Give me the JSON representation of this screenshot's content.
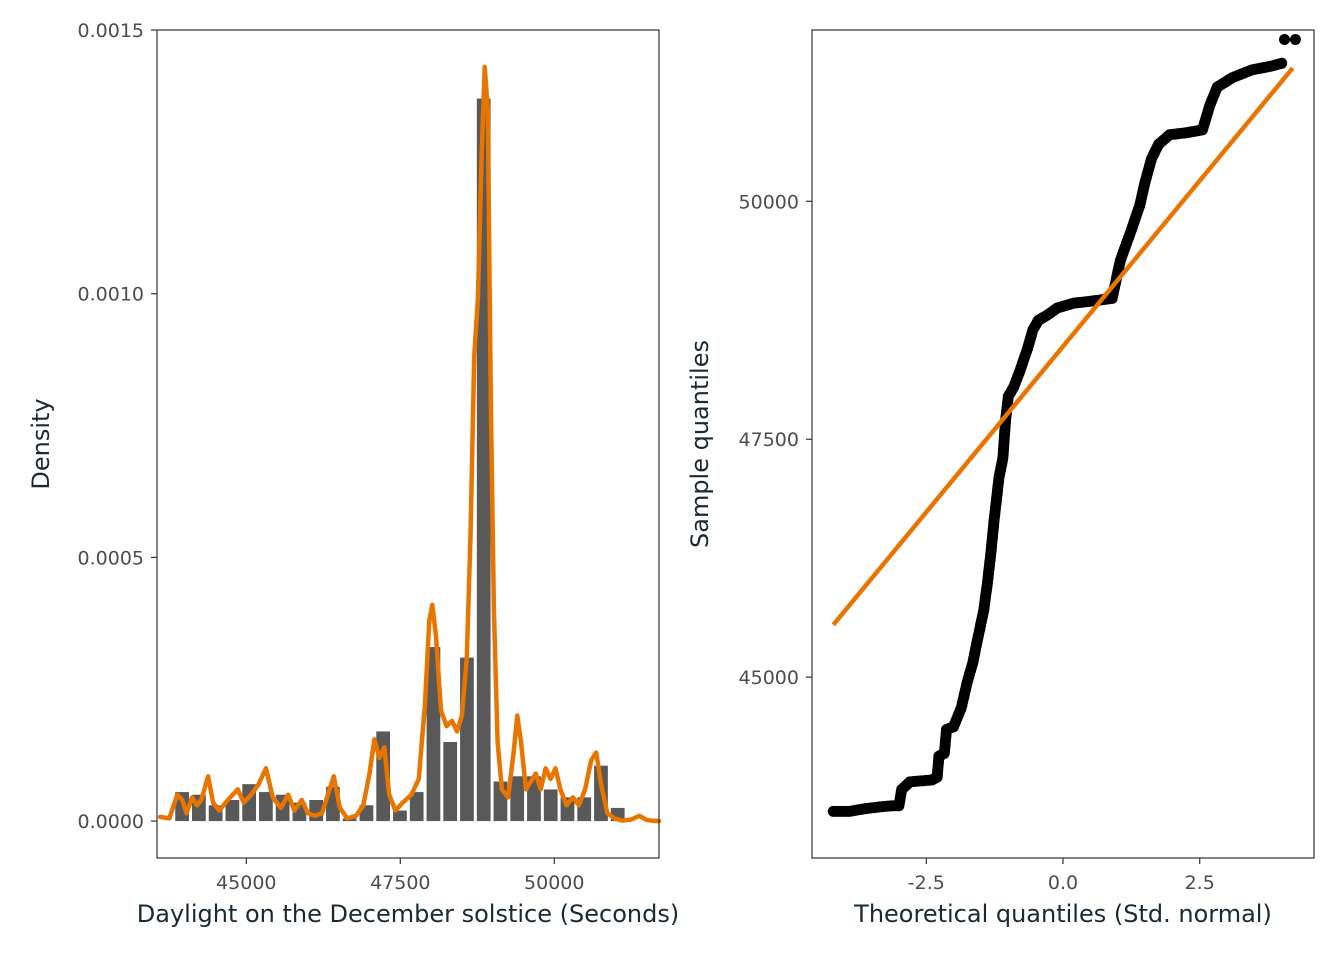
{
  "colors": {
    "bar": "#595959",
    "density": "#E87500",
    "points": "#000000",
    "line": "#E87500",
    "text": "#4d4d4d",
    "title": "#1a2a33"
  },
  "chart_data": [
    {
      "type": "bar",
      "subtype": "histogram-with-density",
      "xlabel": "Daylight on the December solstice (Seconds)",
      "ylabel": "Density",
      "xlim": [
        43550,
        51700
      ],
      "ylim": [
        -7e-05,
        0.0015
      ],
      "xticks": [
        45000,
        47500,
        50000
      ],
      "xtick_labels": [
        "45000",
        "47500",
        "50000"
      ],
      "yticks": [
        0.0,
        0.0005,
        0.001,
        0.0015
      ],
      "ytick_labels": [
        "0.0000",
        "0.0005",
        "0.0010",
        "0.0015"
      ],
      "grid": false,
      "bin_width": 272,
      "bins": [
        {
          "x": 43958,
          "y": 5.5e-05
        },
        {
          "x": 44230,
          "y": 5e-05
        },
        {
          "x": 44502,
          "y": 3e-05
        },
        {
          "x": 44774,
          "y": 4e-05
        },
        {
          "x": 45046,
          "y": 7e-05
        },
        {
          "x": 45318,
          "y": 5.5e-05
        },
        {
          "x": 45590,
          "y": 5e-05
        },
        {
          "x": 45862,
          "y": 3.5e-05
        },
        {
          "x": 46134,
          "y": 4e-05
        },
        {
          "x": 46406,
          "y": 6.5e-05
        },
        {
          "x": 46678,
          "y": 5e-06
        },
        {
          "x": 46950,
          "y": 3e-05
        },
        {
          "x": 47222,
          "y": 0.00017
        },
        {
          "x": 47494,
          "y": 2e-05
        },
        {
          "x": 47766,
          "y": 5.5e-05
        },
        {
          "x": 48038,
          "y": 0.00033
        },
        {
          "x": 48310,
          "y": 0.00015
        },
        {
          "x": 48582,
          "y": 0.00031
        },
        {
          "x": 48854,
          "y": 0.00137
        },
        {
          "x": 49126,
          "y": 7.5e-05
        },
        {
          "x": 49398,
          "y": 8.5e-05
        },
        {
          "x": 49670,
          "y": 8.5e-05
        },
        {
          "x": 49942,
          "y": 6e-05
        },
        {
          "x": 50214,
          "y": 4.5e-05
        },
        {
          "x": 50486,
          "y": 4.5e-05
        },
        {
          "x": 50758,
          "y": 0.000105
        },
        {
          "x": 51030,
          "y": 2.5e-05
        }
      ],
      "density": [
        [
          43600,
          8e-06
        ],
        [
          43750,
          5e-06
        ],
        [
          43880,
          5e-05
        ],
        [
          43960,
          4e-05
        ],
        [
          44030,
          1.5e-05
        ],
        [
          44120,
          4.5e-05
        ],
        [
          44200,
          3e-05
        ],
        [
          44270,
          4e-05
        ],
        [
          44380,
          8.5e-05
        ],
        [
          44460,
          3.5e-05
        ],
        [
          44560,
          2e-05
        ],
        [
          44700,
          4e-05
        ],
        [
          44860,
          6e-05
        ],
        [
          44960,
          3.5e-05
        ],
        [
          45080,
          5e-05
        ],
        [
          45200,
          7e-05
        ],
        [
          45320,
          0.0001
        ],
        [
          45430,
          4.5e-05
        ],
        [
          45560,
          2.5e-05
        ],
        [
          45680,
          5e-05
        ],
        [
          45780,
          2e-05
        ],
        [
          45900,
          4e-05
        ],
        [
          46000,
          1.5e-05
        ],
        [
          46110,
          1e-05
        ],
        [
          46230,
          1.5e-05
        ],
        [
          46350,
          6e-05
        ],
        [
          46420,
          8.5e-05
        ],
        [
          46520,
          2.5e-05
        ],
        [
          46640,
          5e-06
        ],
        [
          46780,
          1e-05
        ],
        [
          46900,
          3e-05
        ],
        [
          47000,
          9e-05
        ],
        [
          47080,
          0.000155
        ],
        [
          47160,
          0.00012
        ],
        [
          47240,
          0.00014
        ],
        [
          47320,
          5e-05
        ],
        [
          47420,
          2e-05
        ],
        [
          47540,
          3.5e-05
        ],
        [
          47680,
          5e-05
        ],
        [
          47800,
          8e-05
        ],
        [
          47900,
          0.00022
        ],
        [
          47970,
          0.00038
        ],
        [
          48020,
          0.00041
        ],
        [
          48080,
          0.00035
        ],
        [
          48160,
          0.00021
        ],
        [
          48250,
          0.00018
        ],
        [
          48340,
          0.00019
        ],
        [
          48420,
          0.00017
        ],
        [
          48500,
          0.0002
        ],
        [
          48580,
          0.00031
        ],
        [
          48640,
          0.00054
        ],
        [
          48700,
          0.00088
        ],
        [
          48760,
          0.00099
        ],
        [
          48820,
          0.00126
        ],
        [
          48870,
          0.00143
        ],
        [
          48920,
          0.00135
        ],
        [
          48970,
          0.0008
        ],
        [
          49020,
          0.0004
        ],
        [
          49080,
          0.00015
        ],
        [
          49150,
          6e-05
        ],
        [
          49250,
          4.5e-05
        ],
        [
          49340,
          0.00013
        ],
        [
          49400,
          0.0002
        ],
        [
          49460,
          0.00015
        ],
        [
          49540,
          6e-05
        ],
        [
          49620,
          7.5e-05
        ],
        [
          49700,
          9e-05
        ],
        [
          49780,
          6e-05
        ],
        [
          49860,
          0.0001
        ],
        [
          49940,
          8e-05
        ],
        [
          50020,
          0.0001
        ],
        [
          50100,
          6e-05
        ],
        [
          50200,
          3e-05
        ],
        [
          50300,
          4.5e-05
        ],
        [
          50400,
          3e-05
        ],
        [
          50500,
          6e-05
        ],
        [
          50600,
          0.000115
        ],
        [
          50680,
          0.00013
        ],
        [
          50760,
          7e-05
        ],
        [
          50860,
          1.5e-05
        ],
        [
          50980,
          5e-06
        ],
        [
          51100,
          1e-06
        ],
        [
          51250,
          3e-06
        ],
        [
          51380,
          1e-05
        ],
        [
          51500,
          2e-06
        ],
        [
          51600,
          5e-07
        ],
        [
          51700,
          2e-07
        ]
      ]
    },
    {
      "type": "scatter",
      "subtype": "qq-plot",
      "xlabel": "Theoretical quantiles (Std. normal)",
      "ylabel": "Sample quantiles",
      "xlim": [
        -4.59,
        4.59
      ],
      "ylim": [
        43100,
        51800
      ],
      "xticks": [
        -2.5,
        0.0,
        2.5
      ],
      "xtick_labels": [
        "-2.5",
        "0.0",
        "2.5"
      ],
      "yticks": [
        45000,
        47500,
        50000
      ],
      "ytick_labels": [
        "45000",
        "47500",
        "50000"
      ],
      "grid": false,
      "reference_line": [
        [
          -4.2,
          45550
        ],
        [
          4.2,
          51400
        ]
      ],
      "quantile_curve": [
        [
          -4.2,
          43590
        ],
        [
          -3.9,
          43590
        ],
        [
          -3.6,
          43620
        ],
        [
          -3.3,
          43640
        ],
        [
          -3.1,
          43650
        ],
        [
          -3.0,
          43650
        ],
        [
          -2.95,
          43820
        ],
        [
          -2.8,
          43900
        ],
        [
          -2.4,
          43920
        ],
        [
          -2.3,
          43950
        ],
        [
          -2.27,
          44170
        ],
        [
          -2.17,
          44200
        ],
        [
          -2.13,
          44450
        ],
        [
          -2.0,
          44480
        ],
        [
          -1.86,
          44680
        ],
        [
          -1.75,
          44950
        ],
        [
          -1.65,
          45150
        ],
        [
          -1.58,
          45350
        ],
        [
          -1.45,
          45700
        ],
        [
          -1.38,
          46000
        ],
        [
          -1.32,
          46300
        ],
        [
          -1.26,
          46650
        ],
        [
          -1.2,
          46950
        ],
        [
          -1.17,
          47100
        ],
        [
          -1.1,
          47300
        ],
        [
          -1.05,
          47700
        ],
        [
          -1.0,
          47950
        ],
        [
          -0.9,
          48050
        ],
        [
          -0.8,
          48200
        ],
        [
          -0.65,
          48450
        ],
        [
          -0.55,
          48650
        ],
        [
          -0.45,
          48750
        ],
        [
          -0.3,
          48800
        ],
        [
          -0.1,
          48880
        ],
        [
          0.2,
          48930
        ],
        [
          0.5,
          48950
        ],
        [
          0.9,
          48980
        ],
        [
          1.0,
          49250
        ],
        [
          1.05,
          49380
        ],
        [
          1.25,
          49700
        ],
        [
          1.4,
          49950
        ],
        [
          1.5,
          50200
        ],
        [
          1.62,
          50450
        ],
        [
          1.75,
          50600
        ],
        [
          1.95,
          50700
        ],
        [
          2.25,
          50720
        ],
        [
          2.55,
          50750
        ],
        [
          2.68,
          51000
        ],
        [
          2.82,
          51200
        ],
        [
          3.1,
          51300
        ],
        [
          3.45,
          51380
        ],
        [
          3.8,
          51420
        ],
        [
          4.0,
          51450
        ]
      ],
      "outliers": [
        [
          4.05,
          51700
        ],
        [
          4.25,
          51700
        ]
      ]
    }
  ]
}
